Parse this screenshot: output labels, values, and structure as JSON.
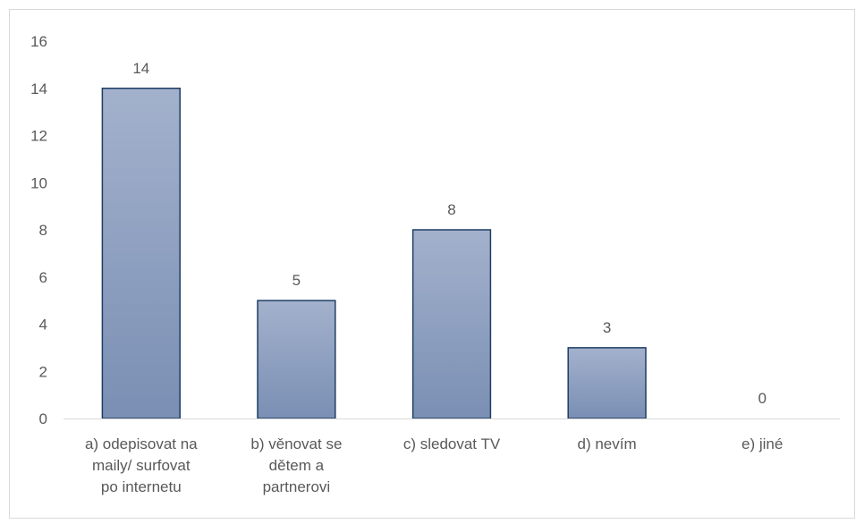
{
  "chart_data": {
    "type": "bar",
    "categories": [
      [
        "a) odepisovat na",
        "maily/ surfovat",
        "po internetu"
      ],
      [
        "b) věnovat se",
        "dětem a",
        "partnerovi"
      ],
      [
        "c) sledovat TV"
      ],
      [
        "d) nevím"
      ],
      [
        "e) jiné"
      ]
    ],
    "values": [
      14,
      5,
      8,
      3,
      0
    ],
    "data_labels": [
      "14",
      "5",
      "8",
      "3",
      "0"
    ],
    "yticks": [
      "0",
      "2",
      "4",
      "6",
      "8",
      "10",
      "12",
      "14",
      "16"
    ],
    "ylim": [
      0,
      16
    ],
    "grid": false,
    "legend": "none",
    "colors": {
      "bar_top": "#a3b1cc",
      "bar_bottom": "#7a8fb4",
      "bar_stroke": "#1f3d63",
      "axis": "#d9d9d9",
      "text": "#595959"
    }
  }
}
